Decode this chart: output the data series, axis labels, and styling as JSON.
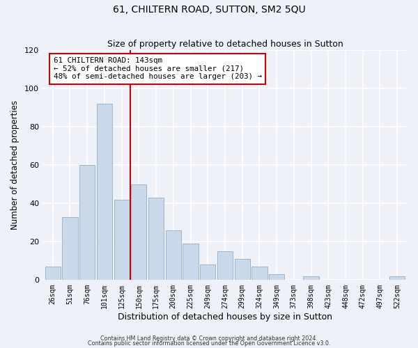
{
  "title": "61, CHILTERN ROAD, SUTTON, SM2 5QU",
  "subtitle": "Size of property relative to detached houses in Sutton",
  "xlabel": "Distribution of detached houses by size in Sutton",
  "ylabel": "Number of detached properties",
  "bar_labels": [
    "26sqm",
    "51sqm",
    "76sqm",
    "101sqm",
    "125sqm",
    "150sqm",
    "175sqm",
    "200sqm",
    "225sqm",
    "249sqm",
    "274sqm",
    "299sqm",
    "324sqm",
    "349sqm",
    "373sqm",
    "398sqm",
    "423sqm",
    "448sqm",
    "472sqm",
    "497sqm",
    "522sqm"
  ],
  "bar_values": [
    7,
    33,
    60,
    92,
    42,
    50,
    43,
    26,
    19,
    8,
    15,
    11,
    7,
    3,
    0,
    2,
    0,
    0,
    0,
    0,
    2
  ],
  "bar_color": "#c9d9ea",
  "bar_edge_color": "#9ab5cc",
  "vline_x": 4.5,
  "vline_color": "#cc0000",
  "annotation_title": "61 CHILTERN ROAD: 143sqm",
  "annotation_line1": "← 52% of detached houses are smaller (217)",
  "annotation_line2": "48% of semi-detached houses are larger (203) →",
  "annotation_box_color": "#ffffff",
  "annotation_box_edge": "#cc0000",
  "ylim": [
    0,
    120
  ],
  "yticks": [
    0,
    20,
    40,
    60,
    80,
    100,
    120
  ],
  "footer1": "Contains HM Land Registry data © Crown copyright and database right 2024.",
  "footer2": "Contains public sector information licensed under the Open Government Licence v3.0.",
  "background_color": "#eef2f8"
}
